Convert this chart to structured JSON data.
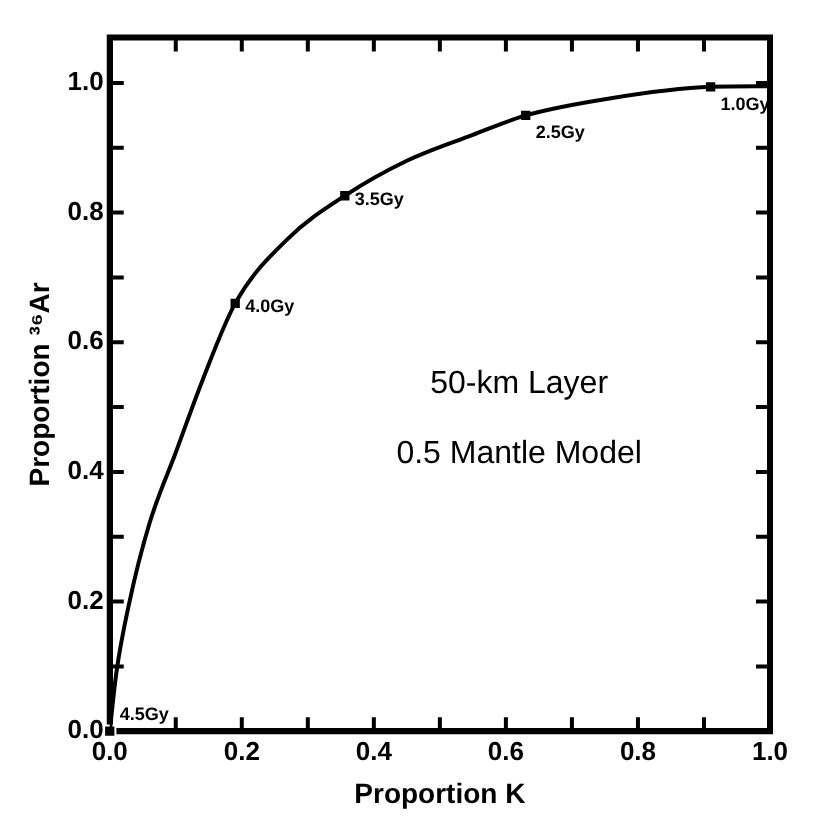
{
  "chart_data": {
    "type": "line",
    "xlabel": "Proportion K",
    "ylabel": "Proportion ³⁶Ar",
    "series": [
      {
        "type": "line",
        "color": "#000000",
        "marker": "none",
        "x": [
          0,
          0.01,
          0.03,
          0.06,
          0.1,
          0.14,
          0.19,
          0.27,
          0.356,
          0.45,
          0.55,
          0.63,
          0.75,
          0.91,
          1.0
        ],
        "values": [
          0,
          0.09,
          0.2,
          0.32,
          0.43,
          0.54,
          0.66,
          0.76,
          0.826,
          0.88,
          0.92,
          0.95,
          0.975,
          0.994,
          0.995
        ]
      },
      {
        "type": "scatter",
        "color": "#000000",
        "marker": "square",
        "x": [
          0,
          0.19,
          0.356,
          0.63,
          0.91
        ],
        "values": [
          0,
          0.66,
          0.826,
          0.95,
          0.994
        ]
      }
    ],
    "xlim": [
      0,
      1.0
    ],
    "ylim": [
      0,
      1.07
    ],
    "xticks": [
      {
        "value": 0,
        "label": "0.0"
      },
      {
        "value": 0.1,
        "label": null
      },
      0.2,
      {
        "value": 0.3,
        "label": null
      },
      0.4,
      {
        "value": 0.5,
        "label": null
      },
      0.6,
      {
        "value": 0.7,
        "label": null
      },
      0.8,
      {
        "value": 0.9,
        "label": null
      },
      {
        "value": 1.0,
        "label": "1.0"
      }
    ],
    "yticks": [
      {
        "value": 0,
        "label": "0.0"
      },
      {
        "value": 0.1,
        "label": null
      },
      0.2,
      {
        "value": 0.3,
        "label": null
      },
      0.4,
      {
        "value": 0.5,
        "label": null
      },
      0.6,
      {
        "value": 0.7,
        "label": null
      },
      0.8,
      {
        "value": 0.9,
        "label": null
      },
      {
        "value": 1.0,
        "label": "1.0"
      }
    ],
    "annotations": [
      {
        "text": "4.5Gy",
        "x": 0,
        "y": 0
      },
      {
        "text": "4.0Gy",
        "x": 0.19,
        "y": 0.66
      },
      {
        "text": "3.5Gy",
        "x": 0.356,
        "y": 0.826
      },
      {
        "text": "2.5Gy",
        "x": 0.63,
        "y": 0.95
      },
      {
        "text": "1.0Gy",
        "x": 0.91,
        "y": 0.994
      },
      "50-km Layer",
      "0.5 Mantle Model"
    ],
    "grid": false,
    "legend": false
  }
}
